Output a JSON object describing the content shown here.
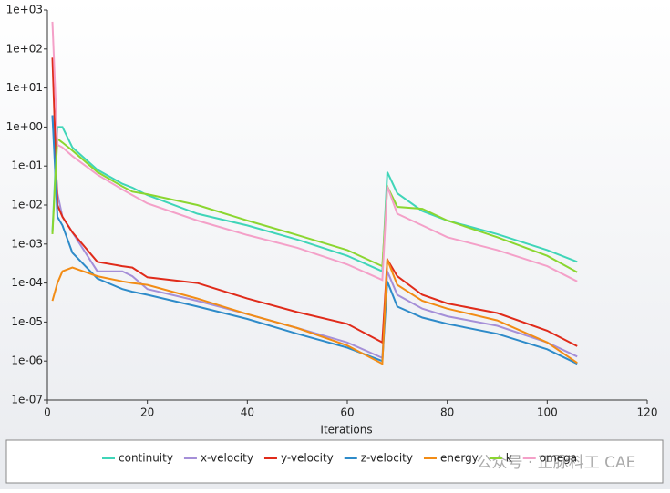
{
  "chart_data": {
    "type": "line",
    "xlabel": "Iterations",
    "log_y": true,
    "legend": "bottom",
    "watermark": "公众号 · 正脉科工 CAE",
    "x": [
      1,
      2,
      3,
      5,
      10,
      15,
      17,
      20,
      30,
      40,
      50,
      60,
      67,
      68,
      70,
      75,
      80,
      90,
      100,
      106
    ],
    "xlim": [
      0,
      120
    ],
    "xticks": [
      0,
      20,
      40,
      60,
      80,
      100,
      120
    ],
    "ylim": [
      1e-07,
      1000
    ],
    "yticks": [
      {
        "value": 1e-07,
        "label": "1e-07"
      },
      {
        "value": 1e-06,
        "label": "1e-06"
      },
      {
        "value": 1e-05,
        "label": "1e-05"
      },
      {
        "value": 0.0001,
        "label": "1e-04"
      },
      {
        "value": 0.001,
        "label": "1e-03"
      },
      {
        "value": 0.01,
        "label": "1e-02"
      },
      {
        "value": 0.1,
        "label": "1e-01"
      },
      {
        "value": 1,
        "label": "1e+00"
      },
      {
        "value": 10,
        "label": "1e+01"
      },
      {
        "value": 100,
        "label": "1e+02"
      },
      {
        "value": 1000,
        "label": "1e+03"
      }
    ],
    "series": [
      {
        "name": "continuity",
        "color": "#3fd5b8",
        "values": [
          0.002,
          1,
          1,
          0.3,
          0.08,
          0.035,
          0.028,
          0.018,
          0.006,
          0.003,
          0.0013,
          0.0005,
          0.0002,
          0.07,
          0.02,
          0.007,
          0.004,
          0.0018,
          0.0007,
          0.00035
        ]
      },
      {
        "name": "x-velocity",
        "color": "#a58fd8",
        "values": [
          2,
          0.02,
          0.005,
          0.002,
          0.0002,
          0.0002,
          0.00015,
          7e-05,
          3.5e-05,
          1.6e-05,
          7e-06,
          3e-06,
          1.2e-06,
          0.0002,
          5e-05,
          2.2e-05,
          1.4e-05,
          8e-06,
          3e-06,
          1.3e-06
        ]
      },
      {
        "name": "y-velocity",
        "color": "#e02b1a",
        "values": [
          60,
          0.01,
          0.005,
          0.002,
          0.00035,
          0.00027,
          0.00025,
          0.00014,
          0.0001,
          4e-05,
          1.8e-05,
          9e-06,
          3e-06,
          0.0004,
          0.00015,
          5e-05,
          3e-05,
          1.7e-05,
          6e-06,
          2.4e-06
        ]
      },
      {
        "name": "z-velocity",
        "color": "#2e8bc9",
        "values": [
          2,
          0.005,
          0.003,
          0.0006,
          0.00013,
          7e-05,
          6e-05,
          5e-05,
          2.5e-05,
          1.2e-05,
          5e-06,
          2.2e-06,
          1e-06,
          0.00011,
          2.5e-05,
          1.3e-05,
          9e-06,
          5e-06,
          2e-06,
          8.5e-07
        ]
      },
      {
        "name": "energy",
        "color": "#f28c15",
        "values": [
          3.5e-05,
          0.0001,
          0.0002,
          0.00025,
          0.00015,
          0.00011,
          0.0001,
          9e-05,
          4e-05,
          1.6e-05,
          7e-06,
          2.5e-06,
          8.5e-07,
          0.0004,
          9e-05,
          3.5e-05,
          2.2e-05,
          1.1e-05,
          3e-06,
          9e-07
        ]
      },
      {
        "name": "k",
        "color": "#8bd630",
        "values": [
          0.0018,
          0.5,
          0.4,
          0.25,
          0.07,
          0.03,
          0.022,
          0.019,
          0.01,
          0.004,
          0.0017,
          0.0007,
          0.00027,
          0.03,
          0.009,
          0.008,
          0.004,
          0.0015,
          0.0005,
          0.00019
        ]
      },
      {
        "name": "omega",
        "color": "#f4a0c8",
        "values": [
          500,
          0.35,
          0.3,
          0.18,
          0.06,
          0.025,
          0.018,
          0.011,
          0.004,
          0.0017,
          0.0008,
          0.0003,
          0.00012,
          0.03,
          0.006,
          0.003,
          0.0015,
          0.0007,
          0.00027,
          0.00011
        ]
      }
    ]
  }
}
